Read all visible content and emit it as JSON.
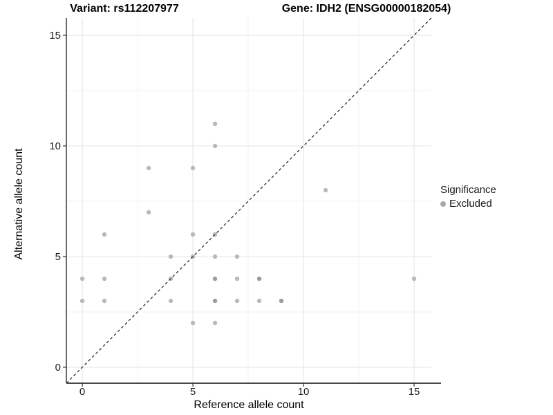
{
  "titles": {
    "variant": "Variant: rs112207977",
    "gene": "Gene: IDH2 (ENSG00000182054)"
  },
  "legend": {
    "title": "Significance",
    "items": [
      {
        "label": "Excluded",
        "color": "#a8a8a8"
      }
    ]
  },
  "colors": {
    "background": "#ffffff",
    "point": "#b9b9b9",
    "point_overlap": "#9c9c9c",
    "grid_major": "#e4e4e4",
    "grid_minor": "#f1f1f1",
    "axis_left": "#2b2b2b",
    "axis_bottom": "#4a4a4a",
    "tick": "#333333",
    "tick_label": "#1a1a1a",
    "identity_line": "#1a1a1a"
  },
  "chart_data": {
    "type": "scatter",
    "title": "Variant: rs112207977  /  Gene: IDH2 (ENSG00000182054)",
    "xlabel": "Reference allele count",
    "ylabel": "Alternative allele count",
    "xlim": [
      -0.72,
      15.78
    ],
    "ylim": [
      -0.72,
      15.78
    ],
    "x_ticks": [
      0,
      5,
      10,
      15
    ],
    "y_ticks": [
      0,
      5,
      10,
      15
    ],
    "x_minor": [
      2.5,
      7.5,
      12.5
    ],
    "y_minor": [
      2.5,
      7.5,
      12.5
    ],
    "grid": true,
    "legend_position": "right",
    "identity_line": {
      "show": true,
      "style": "dashed",
      "slope": 1,
      "intercept": 0
    },
    "series_name": "Excluded",
    "points": [
      {
        "x": 0,
        "y": 3
      },
      {
        "x": 0,
        "y": 4
      },
      {
        "x": 1,
        "y": 3
      },
      {
        "x": 1,
        "y": 4
      },
      {
        "x": 1,
        "y": 6
      },
      {
        "x": 3,
        "y": 7
      },
      {
        "x": 3,
        "y": 9
      },
      {
        "x": 4,
        "y": 3
      },
      {
        "x": 4,
        "y": 4
      },
      {
        "x": 4,
        "y": 5
      },
      {
        "x": 5,
        "y": 2
      },
      {
        "x": 5,
        "y": 5
      },
      {
        "x": 5,
        "y": 6
      },
      {
        "x": 5,
        "y": 9
      },
      {
        "x": 6,
        "y": 2
      },
      {
        "x": 6,
        "y": 3,
        "dark": true
      },
      {
        "x": 6,
        "y": 4,
        "dark": true
      },
      {
        "x": 6,
        "y": 5
      },
      {
        "x": 6,
        "y": 6
      },
      {
        "x": 6,
        "y": 10
      },
      {
        "x": 6,
        "y": 11
      },
      {
        "x": 7,
        "y": 3
      },
      {
        "x": 7,
        "y": 4
      },
      {
        "x": 7,
        "y": 5
      },
      {
        "x": 8,
        "y": 3
      },
      {
        "x": 8,
        "y": 4,
        "dark": true
      },
      {
        "x": 9,
        "y": 3,
        "dark": true
      },
      {
        "x": 11,
        "y": 8
      },
      {
        "x": 15,
        "y": 4
      }
    ]
  }
}
